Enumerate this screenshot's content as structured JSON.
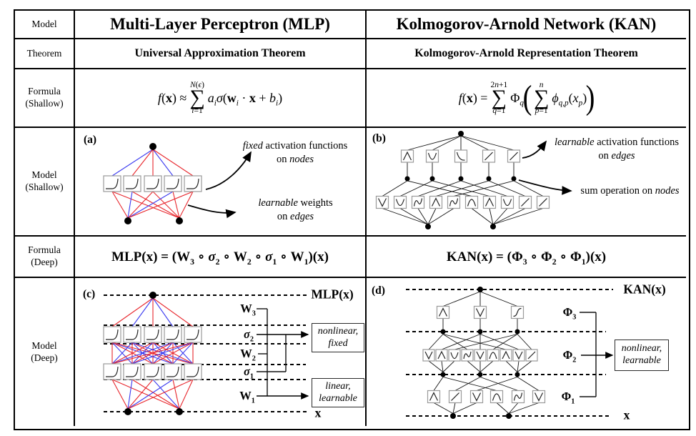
{
  "row_labels": [
    {
      "l1": "Model",
      "l2": ""
    },
    {
      "l1": "Theorem",
      "l2": ""
    },
    {
      "l1": "Formula",
      "l2": "(Shallow)"
    },
    {
      "l1": "Model",
      "l2": "(Shallow)"
    },
    {
      "l1": "Formula",
      "l2": "(Deep)"
    },
    {
      "l1": "Model",
      "l2": "(Deep)"
    }
  ],
  "titles": {
    "mlp": "Multi-Layer Perceptron (MLP)",
    "kan": "Kolmogorov-Arnold Network (KAN)"
  },
  "theorems": {
    "mlp": "Universal Approximation Theorem",
    "kan": "Kolmogorov-Arnold Representation Theorem"
  },
  "formulas": {
    "mlp_shallow": {
      "lhs": "<i>f</i>(<b>x</b>) ≈",
      "sum_top": "<i>N</i>(<i>ϵ</i>)",
      "sum_sym": "∑",
      "sum_bot": "<i>i</i>=1",
      "rhs": "<i>a<sub>i</sub></i><i>σ</i>(<b>w</b><sub><i>i</i></sub> · <b>x</b> + <i>b<sub>i</sub></i>)"
    },
    "kan_shallow": {
      "lhs": "<i>f</i>(<b>x</b>) =",
      "sum1_top": "2<i>n</i>+1",
      "sum_sym": "∑",
      "sum1_bot": "<i>q</i>=1",
      "phi": "Φ<sub><i>q</i></sub>",
      "lparen": "(",
      "sum2_top": "<i>n</i>",
      "sum2_bot": "<i>p</i>=1",
      "inner": "<i>ϕ<sub>q,p</sub></i>(<i>x<sub>p</sub></i>)",
      "rparen": ")"
    },
    "mlp_deep": "MLP(<b>x</b>) = (<b>W</b><sub>3</sub> ∘ <i>σ</i><sub>2</sub> ∘ <b>W</b><sub>2</sub> ∘ <i>σ</i><sub>1</sub> ∘ <b>W</b><sub>1</sub>)(<b>x</b>)",
    "kan_deep": "KAN(<b>x</b>) = (<b>Φ</b><sub>3</sub> ∘ <b>Φ</b><sub>2</sub> ∘ <b>Φ</b><sub>1</sub>)(<b>x</b>)"
  },
  "diagram_a": {
    "tag": "(a)",
    "ann1_l1": "<i>fixed</i> activation functions",
    "ann1_l2": "on <i>nodes</i>",
    "ann2_l1": "<i>learnable</i> weights",
    "ann2_l2": "on <i>edges</i>"
  },
  "diagram_b": {
    "tag": "(b)",
    "ann1_l1": "<i>learnable</i> activation functions",
    "ann1_l2": "on <i>edges</i>",
    "ann2": "sum operation on <i>nodes</i>"
  },
  "diagram_c": {
    "tag": "(c)",
    "top_label": "MLP(<b>x</b>)",
    "w3": "<b>W</b><sub>3</sub>",
    "s2": "<i>σ</i><sub>2</sub>",
    "w2": "<b>W</b><sub>2</sub>",
    "s1": "<i>σ</i><sub>1</sub>",
    "w1": "<b>W</b><sub>1</sub>",
    "x_label": "<b>x</b>",
    "box1_l1": "nonlinear,",
    "box1_l2": "fixed",
    "box2_l1": "linear,",
    "box2_l2": "learnable"
  },
  "diagram_d": {
    "tag": "(d)",
    "top_label": "KAN(<b>x</b>)",
    "p3": "<b>Φ</b><sub>3</sub>",
    "p2": "<b>Φ</b><sub>2</sub>",
    "p1": "<b>Φ</b><sub>1</sub>",
    "x_label": "<b>x</b>",
    "box_l1": "nonlinear,",
    "box_l2": "learnable"
  },
  "colors": {
    "edge_red": "#e8262c",
    "edge_blue": "#3c3cf0",
    "ink": "#111111",
    "box_border": "#9a9a9a",
    "curve": "#222222"
  }
}
